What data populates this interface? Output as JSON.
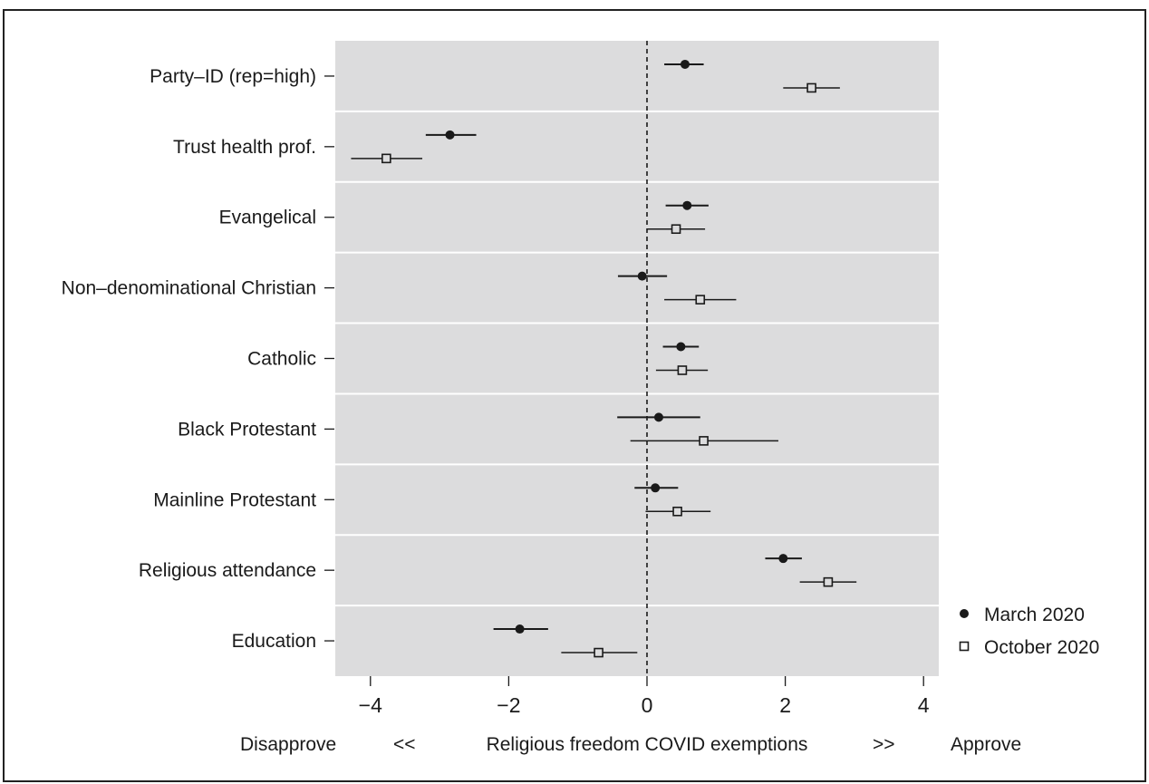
{
  "chart_data": {
    "type": "scatter",
    "subtype": "coefficient-plot",
    "categories": [
      "Party–ID (rep=high)",
      "Trust health prof.",
      "Evangelical",
      "Non–denominational Christian",
      "Catholic",
      "Black Protestant",
      "Mainline Protestant",
      "Religious attendance",
      "Education"
    ],
    "series": [
      {
        "name": "March 2020",
        "marker": "filled-circle",
        "estimates": [
          0.55,
          -2.85,
          0.58,
          -0.07,
          0.49,
          0.17,
          0.12,
          1.97,
          -1.84
        ],
        "ci_low": [
          0.25,
          -3.2,
          0.27,
          -0.42,
          0.23,
          -0.43,
          -0.18,
          1.71,
          -2.22
        ],
        "ci_high": [
          0.82,
          -2.47,
          0.89,
          0.29,
          0.75,
          0.77,
          0.45,
          2.24,
          -1.43
        ]
      },
      {
        "name": "October 2020",
        "marker": "open-square",
        "estimates": [
          2.38,
          -3.77,
          0.42,
          0.77,
          0.51,
          0.82,
          0.44,
          2.62,
          -0.7
        ],
        "ci_low": [
          1.97,
          -4.28,
          0.0,
          0.25,
          0.13,
          -0.24,
          -0.02,
          2.21,
          -1.24
        ],
        "ci_high": [
          2.79,
          -3.25,
          0.84,
          1.29,
          0.88,
          1.9,
          0.92,
          3.03,
          -0.14
        ]
      }
    ],
    "x_ticks": [
      -4,
      -2,
      0,
      2,
      4
    ],
    "x_tick_labels": [
      "−4",
      "−2",
      "0",
      "2",
      "4"
    ],
    "xlim": [
      -4.5,
      4.2
    ],
    "reference_line": 0,
    "xlabel": {
      "left": "Disapprove",
      "left_arrow": "<<",
      "center": "Religious freedom COVID exemptions",
      "right_arrow": ">>",
      "right": "Approve"
    },
    "legend_position": "bottom-right outside",
    "colors": {
      "panel": "#dcdcdd",
      "ink": "#1a1a1a",
      "separator": "#ffffff"
    }
  }
}
